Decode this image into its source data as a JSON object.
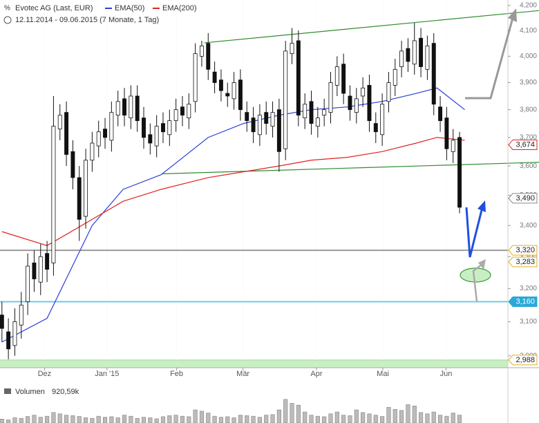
{
  "chart_data": {
    "type": "candlestick",
    "title": "Evotec AG (Last, EUR)",
    "subtitle": "12.11.2014 - 09.06.2015 (7 Monate, 1 Tag)",
    "log_scale": true,
    "xlim": [
      -0.3,
      78.5
    ],
    "ylim": [
      2966,
      4222
    ],
    "xticks": [
      {
        "value": 6.6,
        "label": "Dez"
      },
      {
        "value": 16.3,
        "label": "Jan '15"
      },
      {
        "value": 27.1,
        "label": "Feb"
      },
      {
        "value": 37.4,
        "label": "Mär"
      },
      {
        "value": 48.8,
        "label": "Apr"
      },
      {
        "value": 59.1,
        "label": "Mai"
      },
      {
        "value": 68.9,
        "label": "Jun"
      }
    ],
    "yticks": [
      {
        "value": 2900,
        "label": "2,900"
      },
      {
        "value": 3000,
        "label": "3,000"
      },
      {
        "value": 3100,
        "label": "3,100"
      },
      {
        "value": 3200,
        "label": "3,200"
      },
      {
        "value": 3300,
        "label": "3,300"
      },
      {
        "value": 3400,
        "label": "3,400"
      },
      {
        "value": 3500,
        "label": "3,500"
      },
      {
        "value": 3600,
        "label": "3,600"
      },
      {
        "value": 3700,
        "label": "3,700"
      },
      {
        "value": 3800,
        "label": "3,800"
      },
      {
        "value": 3900,
        "label": "3,900"
      },
      {
        "value": 4000,
        "label": "4,000"
      },
      {
        "value": 4100,
        "label": "4,100"
      },
      {
        "value": 4200,
        "label": "4,200"
      }
    ],
    "open": [
      3120,
      3070,
      3030,
      3090,
      3160,
      3280,
      3220,
      3310,
      3280,
      3730,
      3790,
      3650,
      3560,
      3430,
      3620,
      3670,
      3730,
      3690,
      3780,
      3840,
      3770,
      3850,
      3770,
      3710,
      3670,
      3750,
      3710,
      3760,
      3810,
      3770,
      3830,
      4000,
      4050,
      3940,
      3910,
      3860,
      3840,
      3910,
      3790,
      3770,
      3710,
      3790,
      3740,
      3800,
      3660,
      4010,
      4060,
      3770,
      3830,
      3740,
      3780,
      3790,
      3890,
      3970,
      3850,
      3790,
      3850,
      3890,
      3750,
      3710,
      3830,
      3890,
      3960,
      4030,
      3970,
      4070,
      3950,
      4050,
      3810,
      3770,
      3650,
      3700
    ],
    "high": [
      3160,
      3110,
      3140,
      3190,
      3310,
      3320,
      3340,
      3350,
      3850,
      3820,
      3830,
      3690,
      3600,
      3660,
      3720,
      3760,
      3770,
      3830,
      3870,
      3880,
      3890,
      3890,
      3810,
      3750,
      3780,
      3790,
      3800,
      3840,
      3850,
      3860,
      4050,
      4060,
      4090,
      3980,
      3950,
      3900,
      3940,
      3950,
      3830,
      3810,
      3820,
      3830,
      3830,
      3840,
      4060,
      4110,
      4100,
      3860,
      3870,
      3810,
      3840,
      3940,
      4000,
      4010,
      3890,
      3880,
      3920,
      3930,
      3790,
      3860,
      3940,
      3990,
      4060,
      4070,
      4130,
      4110,
      4080,
      4090,
      3850,
      3810,
      3730,
      3720
    ],
    "low": [
      3040,
      2990,
      3000,
      3050,
      3120,
      3190,
      3180,
      3220,
      3240,
      3690,
      3600,
      3520,
      3350,
      3390,
      3580,
      3630,
      3660,
      3650,
      3740,
      3740,
      3730,
      3720,
      3660,
      3640,
      3630,
      3680,
      3670,
      3720,
      3740,
      3730,
      3790,
      3960,
      3910,
      3860,
      3830,
      3810,
      3800,
      3760,
      3720,
      3680,
      3670,
      3710,
      3700,
      3580,
      3620,
      3970,
      3740,
      3730,
      3710,
      3700,
      3740,
      3750,
      3850,
      3820,
      3760,
      3750,
      3810,
      3720,
      3680,
      3670,
      3790,
      3850,
      3920,
      3940,
      3930,
      3920,
      3910,
      3780,
      3720,
      3620,
      3610,
      3440
    ],
    "close": [
      3080,
      3020,
      3100,
      3150,
      3270,
      3230,
      3300,
      3260,
      3740,
      3780,
      3640,
      3560,
      3420,
      3620,
      3680,
      3720,
      3700,
      3790,
      3830,
      3780,
      3850,
      3760,
      3700,
      3680,
      3740,
      3720,
      3760,
      3800,
      3780,
      3820,
      4010,
      4040,
      3950,
      3900,
      3870,
      3850,
      3900,
      3800,
      3760,
      3720,
      3780,
      3750,
      3790,
      3650,
      4020,
      4050,
      3780,
      3820,
      3750,
      3770,
      3800,
      3900,
      3960,
      3860,
      3800,
      3840,
      3880,
      3760,
      3720,
      3820,
      3900,
      3950,
      4020,
      3980,
      4060,
      3960,
      4040,
      3820,
      3760,
      3660,
      3690,
      3460
    ],
    "lines": [
      {
        "name": "EMA(50)",
        "color": "#2a3fd8",
        "x": [
          0,
          7,
          14,
          18.8,
          24.7,
          32,
          37.5,
          43,
          48,
          53.6,
          59,
          64.3,
          67.5,
          71.8
        ],
        "values": [
          3040,
          3110,
          3400,
          3520,
          3570,
          3700,
          3750,
          3780,
          3800,
          3810,
          3830,
          3860,
          3880,
          3800
        ]
      },
      {
        "name": "EMA(200)",
        "color": "#e02020",
        "x": [
          0,
          7,
          14,
          18.8,
          24.7,
          32,
          37.5,
          43,
          48,
          53.6,
          59,
          64.3,
          67.5,
          71.8
        ],
        "values": [
          3380,
          3335,
          3420,
          3480,
          3520,
          3560,
          3580,
          3600,
          3620,
          3630,
          3650,
          3680,
          3700,
          3690
        ]
      }
    ],
    "trendlines": [
      {
        "color": "#2e8b2e",
        "x": [
          31.4,
          83.6
        ],
        "values": [
          4052,
          4180
        ]
      },
      {
        "color": "#2e8b2e",
        "x": [
          24.9,
          83.6
        ],
        "values": [
          3573,
          3613
        ]
      }
    ],
    "levels": [
      {
        "value": 3320,
        "color": "#9a9a9a"
      },
      {
        "value": 3160,
        "color": "#6cc9e6"
      }
    ],
    "support_zone": {
      "value": 2988,
      "color": "#c8efc4"
    },
    "price_labels": [
      {
        "value": 3674,
        "label": "3,674",
        "color": "#e02020"
      },
      {
        "value": 3490,
        "label": "3,490",
        "color": "#8a8a8a"
      },
      {
        "value": 3320,
        "label": "3,320",
        "color": "#e0b020"
      },
      {
        "value": 3283,
        "label": "3,283",
        "color": "#e0b020"
      },
      {
        "value": 3160,
        "label": "3,160",
        "color": "#2aa8d8"
      },
      {
        "value": 2988,
        "label": "2,988",
        "color": "#e0b020"
      }
    ],
    "volume_title": "Volumen",
    "volume_label": "920,59k",
    "vlim": [
      0,
      1000
    ],
    "volume": [
      150,
      120,
      200,
      180,
      250,
      300,
      220,
      260,
      400,
      350,
      300,
      280,
      250,
      200,
      180,
      260,
      220,
      240,
      200,
      300,
      260,
      180,
      220,
      200,
      160,
      240,
      280,
      300,
      260,
      240,
      500,
      450,
      380,
      260,
      220,
      240,
      200,
      300,
      280,
      260,
      220,
      300,
      320,
      500,
      900,
      750,
      680,
      420,
      300,
      260,
      240,
      350,
      420,
      300,
      280,
      500,
      400,
      350,
      300,
      250,
      600,
      520,
      480,
      700,
      650,
      400,
      350,
      420,
      300,
      260,
      380,
      300
    ]
  }
}
